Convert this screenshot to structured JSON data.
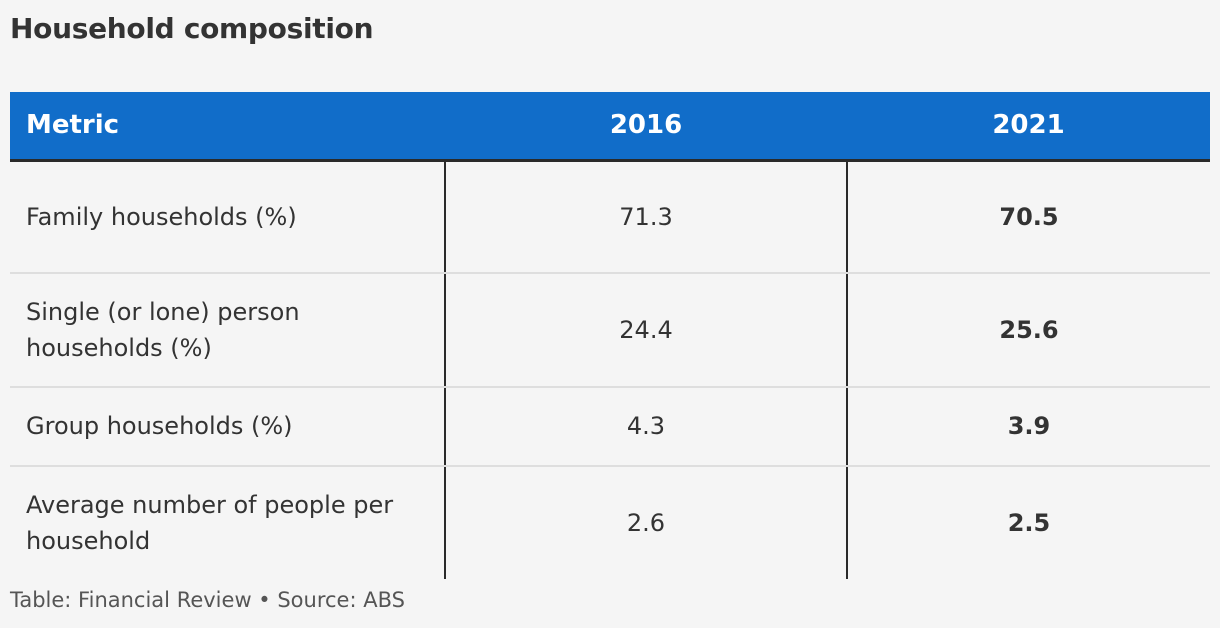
{
  "chart_data": {
    "type": "table",
    "title": "Household composition",
    "columns": [
      "Metric",
      "2016",
      "2021"
    ],
    "rows": [
      {
        "metric": "Family households (%)",
        "v2016": "71.3",
        "v2021": "70.5"
      },
      {
        "metric": "Single (or lone) person households (%)",
        "v2016": "24.4",
        "v2021": "25.6"
      },
      {
        "metric": "Group households (%)",
        "v2016": "4.3",
        "v2021": "3.9"
      },
      {
        "metric": "Average number of people per household",
        "v2016": "2.6",
        "v2021": "2.5"
      }
    ],
    "header_color": "#116dc9",
    "footer": "Table: Financial Review • Source: ABS"
  }
}
